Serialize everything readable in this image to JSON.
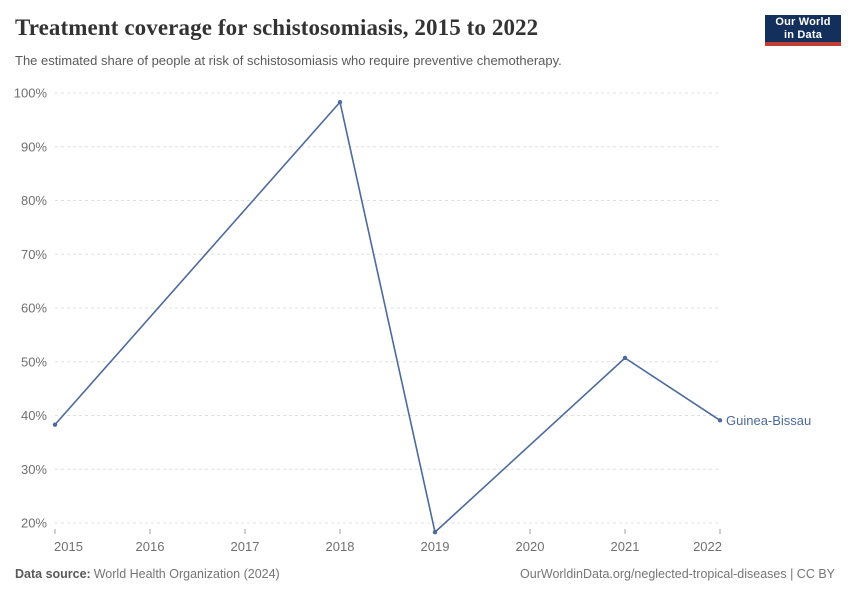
{
  "header": {
    "title": "Treatment coverage for schistosomiasis, 2015 to 2022",
    "subtitle": "The estimated share of people at risk of schistosomiasis who require preventive chemotherapy.",
    "logo": {
      "line1": "Our World",
      "line2": "in Data",
      "bg_color": "#12305b",
      "accent_color": "#c23d33",
      "text_color": "#ffffff"
    }
  },
  "chart_data": {
    "type": "line",
    "title": "Treatment coverage for schistosomiasis, 2015 to 2022",
    "xlabel": "",
    "ylabel": "",
    "x_ticks": [
      2015,
      2016,
      2017,
      2018,
      2019,
      2020,
      2021,
      2022
    ],
    "y_ticks": [
      20,
      30,
      40,
      50,
      60,
      70,
      80,
      90,
      100
    ],
    "y_suffix": "%",
    "xlim": [
      2015,
      2022
    ],
    "ylim": [
      20,
      100
    ],
    "grid": "horizontal-dashed",
    "grid_color": "#e0e0e0",
    "tick_color": "#a0a0a0",
    "axis_text_color": "#707070",
    "legend_position": "end-of-line",
    "series": [
      {
        "name": "Guinea-Bissau",
        "color": "#4C6A9C",
        "x": [
          2015,
          2018,
          2019,
          2021,
          2022
        ],
        "values": [
          38.3,
          98.3,
          18.3,
          50.7,
          39.1
        ]
      }
    ]
  },
  "footer": {
    "source_label": "Data source:",
    "source_value": "World Health Organization (2024)",
    "link": "OurWorldinData.org/neglected-tropical-diseases | CC BY"
  }
}
